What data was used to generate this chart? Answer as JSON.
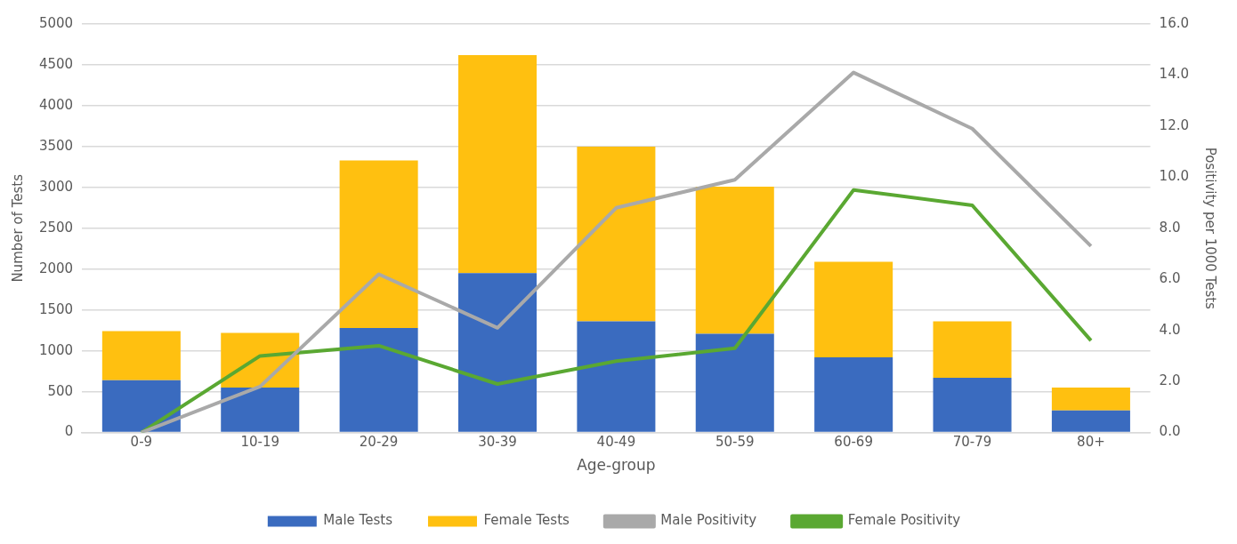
{
  "chart_data": {
    "type": "bar",
    "xlabel": "Age-group",
    "ylabel": "Number of Tests",
    "y2label": "Positivity per 1000 Tests",
    "categories": [
      "0-9",
      "10-19",
      "20-29",
      "30-39",
      "40-49",
      "50-59",
      "60-69",
      "70-79",
      "80+"
    ],
    "stacked": true,
    "grid": "y",
    "legend": "bottom",
    "marker": "none",
    "ylim": [
      0,
      5000
    ],
    "yticks": [
      0,
      500,
      1000,
      1500,
      2000,
      2500,
      3000,
      3500,
      4000,
      4500,
      5000
    ],
    "y2lim": [
      0,
      16
    ],
    "y2ticks": [
      {
        "value": 0,
        "label": "0.0"
      },
      {
        "value": 2,
        "label": "2.0"
      },
      {
        "value": 4,
        "label": "4.0"
      },
      {
        "value": 6,
        "label": "6.0"
      },
      {
        "value": 8,
        "label": "8.0"
      },
      {
        "value": 10,
        "label": "10.0"
      },
      {
        "value": 12,
        "label": "12.0"
      },
      {
        "value": 14,
        "label": "14.0"
      },
      {
        "value": 16,
        "label": "16.0"
      }
    ],
    "series": [
      {
        "name": "Male Tests",
        "color": "#3a6bbf",
        "values": [
          640,
          550,
          1280,
          1950,
          1360,
          1210,
          920,
          670,
          270
        ]
      },
      {
        "name": "Female Tests",
        "color": "#ffc010",
        "values": [
          600,
          670,
          2050,
          2670,
          2140,
          1800,
          1170,
          690,
          280
        ]
      },
      {
        "name": "Male Positivity",
        "type": "line",
        "axis": "y2",
        "color": "#a9a9a9",
        "values": [
          0,
          1.8,
          6.2,
          4.1,
          8.8,
          9.9,
          14.1,
          11.9,
          7.3
        ]
      },
      {
        "name": "Female Positivity",
        "type": "line",
        "axis": "y2",
        "color": "#5aa832",
        "values": [
          0,
          3.0,
          3.4,
          1.9,
          2.8,
          3.3,
          9.5,
          8.9,
          3.6
        ]
      }
    ]
  }
}
